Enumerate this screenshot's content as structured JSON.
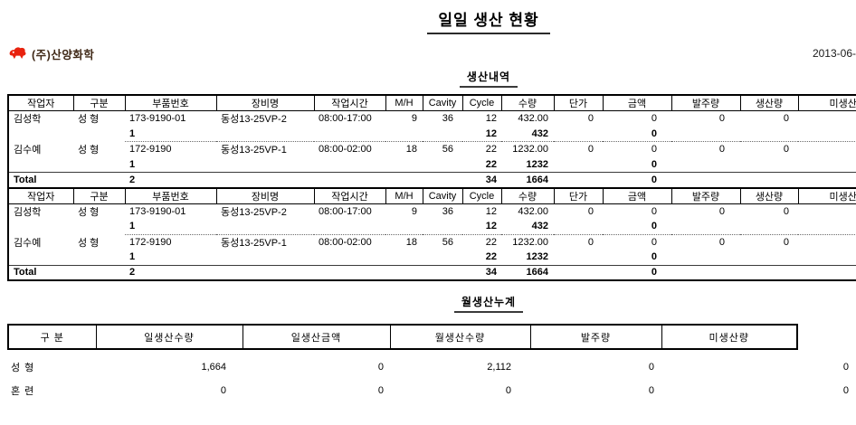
{
  "page": {
    "title": "일일 생산 현황",
    "company": "(주)산양화학",
    "date": "2013-06-",
    "logo_icon": "goat-icon",
    "colors": {
      "logo_icon_red": "#e8220e",
      "logo_text_brown": "#3f2816"
    }
  },
  "sections": {
    "production_title": "생산내역",
    "monthly_title": "월생산누계"
  },
  "production_table": {
    "headers": [
      "작업자",
      "구분",
      "부품번호",
      "장비명",
      "작업시간",
      "M/H",
      "Cavity",
      "Cycle",
      "수량",
      "단가",
      "금액",
      "발주량",
      "생산량",
      "미생산량"
    ],
    "groups": [
      {
        "row": [
          "김성학",
          "성 형",
          "173-9190-01",
          "동성13-25VP-2",
          "08:00-17:00",
          "9",
          "36",
          "12",
          "432.00",
          "0",
          "0",
          "0",
          "0",
          ""
        ],
        "subtotal": {
          "count": "1",
          "cycle": "12",
          "qty": "432",
          "amount": "0"
        }
      },
      {
        "row": [
          "김수예",
          "성 형",
          "172-9190",
          "동성13-25VP-1",
          "08:00-02:00",
          "18",
          "56",
          "22",
          "1232.00",
          "0",
          "0",
          "0",
          "0",
          ""
        ],
        "subtotal": {
          "count": "1",
          "cycle": "22",
          "qty": "1232",
          "amount": "0"
        }
      }
    ],
    "total": {
      "label": "Total",
      "count": "2",
      "cycle": "34",
      "qty": "1664",
      "amount": "0"
    }
  },
  "monthly_table": {
    "headers": [
      "구 분",
      "일생산수량",
      "일생산금액",
      "월생산수량",
      "발주량",
      "미생산량"
    ],
    "rows": [
      [
        "성 형",
        "1,664",
        "0",
        "2,112",
        "0",
        "0"
      ],
      [
        "혼 련",
        "0",
        "0",
        "0",
        "0",
        "0"
      ]
    ]
  }
}
